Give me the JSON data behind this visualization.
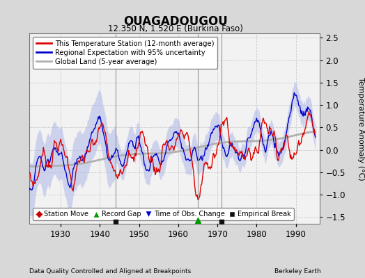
{
  "title": "OUAGADOUGOU",
  "subtitle": "12.350 N, 1.520 E (Burkina Faso)",
  "ylabel": "Temperature Anomaly (°C)",
  "xlabel_left": "Data Quality Controlled and Aligned at Breakpoints",
  "xlabel_right": "Berkeley Earth",
  "xlim": [
    1922,
    1996
  ],
  "ylim": [
    -1.65,
    2.6
  ],
  "yticks": [
    -1.5,
    -1.0,
    -0.5,
    0.0,
    0.5,
    1.0,
    1.5,
    2.0,
    2.5
  ],
  "xticks": [
    1930,
    1940,
    1950,
    1960,
    1970,
    1980,
    1990
  ],
  "bg_color": "#d8d8d8",
  "plot_bg_color": "#f2f2f2",
  "red_line_color": "#dd0000",
  "blue_line_color": "#0000cc",
  "blue_fill_color": "#b0b8e8",
  "gray_line_color": "#b0b0b0",
  "marker_station_move": "#cc0000",
  "marker_record_gap": "#009900",
  "marker_obs_change": "#0000cc",
  "marker_empirical_break": "#111111",
  "empirical_breaks": [
    1944,
    1971
  ],
  "record_gaps": [
    1965
  ],
  "vertical_lines": [
    1944,
    1965,
    1971
  ],
  "vertical_line_color": "#888888",
  "figsize": [
    5.24,
    4.0
  ],
  "dpi": 100
}
